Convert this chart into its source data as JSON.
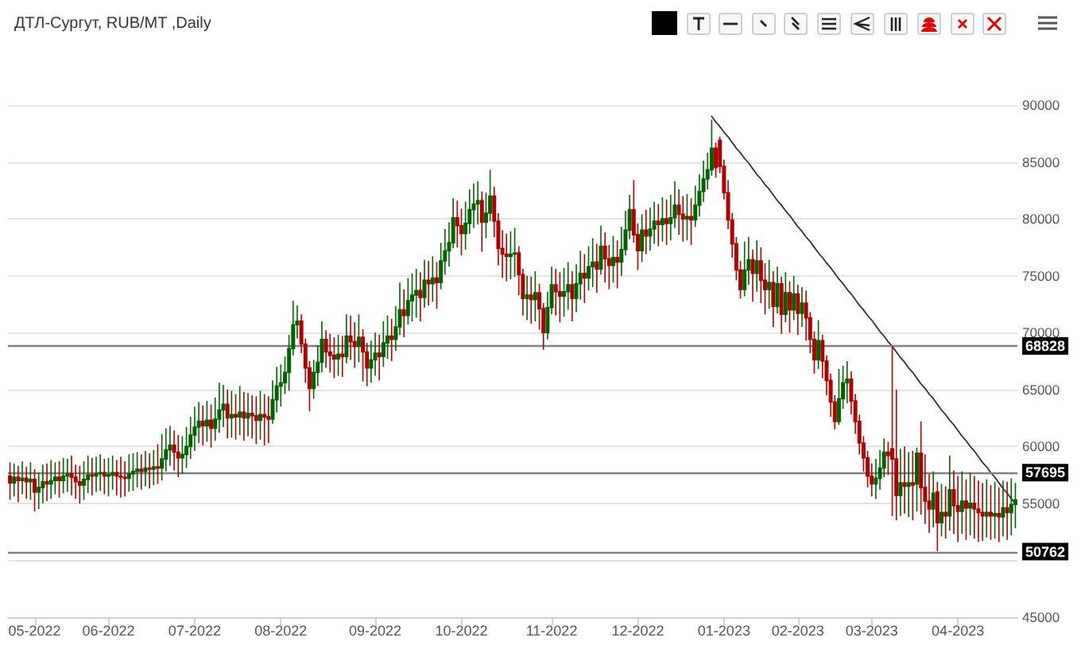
{
  "chart_data": {
    "type": "candlestick",
    "title": "ДТЛ-Сургут, RUB/MT ,Daily",
    "categories": [
      null,
      null,
      null,
      null,
      null,
      null,
      "05-2022",
      null,
      null,
      null,
      null,
      null,
      null,
      null,
      null,
      null,
      null,
      null,
      null,
      null,
      null,
      null,
      null,
      null,
      "06-2022",
      null,
      null,
      null,
      null,
      null,
      null,
      null,
      null,
      null,
      null,
      null,
      null,
      null,
      null,
      null,
      null,
      null,
      null,
      null,
      null,
      "07-2022",
      null,
      null,
      null,
      null,
      null,
      null,
      null,
      null,
      null,
      null,
      null,
      null,
      null,
      null,
      null,
      null,
      null,
      null,
      null,
      null,
      "08-2022",
      null,
      null,
      null,
      null,
      null,
      null,
      null,
      null,
      null,
      null,
      null,
      null,
      null,
      null,
      null,
      null,
      null,
      null,
      null,
      null,
      null,
      null,
      "09-2022",
      null,
      null,
      null,
      null,
      null,
      null,
      null,
      null,
      null,
      null,
      null,
      null,
      null,
      null,
      null,
      null,
      null,
      null,
      null,
      null,
      "10-2022",
      null,
      null,
      null,
      null,
      null,
      null,
      null,
      null,
      null,
      null,
      null,
      null,
      null,
      null,
      null,
      null,
      null,
      null,
      null,
      null,
      null,
      "11-2022",
      null,
      null,
      null,
      null,
      null,
      null,
      null,
      null,
      null,
      null,
      null,
      null,
      null,
      null,
      null,
      null,
      null,
      null,
      null,
      null,
      "12-2022",
      null,
      null,
      null,
      null,
      null,
      null,
      null,
      null,
      null,
      null,
      null,
      null,
      null,
      null,
      null,
      null,
      null,
      null,
      null,
      null,
      "01-2023",
      null,
      null,
      null,
      null,
      null,
      null,
      null,
      null,
      null,
      null,
      null,
      null,
      null,
      null,
      null,
      null,
      null,
      "02-2023",
      null,
      null,
      null,
      null,
      null,
      null,
      null,
      null,
      null,
      null,
      null,
      null,
      null,
      null,
      null,
      null,
      null,
      "03-2023",
      null,
      null,
      null,
      null,
      null,
      null,
      null,
      null,
      null,
      null,
      null,
      null,
      null,
      null,
      null,
      null,
      null,
      null,
      null,
      null,
      "04-2023",
      null,
      null,
      null,
      null,
      null,
      null,
      null,
      null,
      null,
      null,
      null,
      null,
      null,
      null
    ],
    "series": [
      {
        "ohlc": [
          [
            57400,
            58600,
            55300,
            56800
          ],
          [
            56800,
            58500,
            55600,
            57300
          ],
          [
            57300,
            58300,
            55100,
            57000
          ],
          [
            57000,
            58700,
            55800,
            57200
          ],
          [
            57200,
            58200,
            55400,
            56900
          ],
          [
            56900,
            58600,
            55300,
            57100
          ],
          [
            57100,
            58000,
            54300,
            56000
          ],
          [
            56000,
            57700,
            54500,
            56400
          ],
          [
            56400,
            58400,
            55000,
            56900
          ],
          [
            56900,
            58500,
            55200,
            56700
          ],
          [
            56700,
            58800,
            55400,
            57000
          ],
          [
            57000,
            58600,
            55800,
            57300
          ],
          [
            57300,
            58700,
            55500,
            57000
          ],
          [
            57000,
            59000,
            55900,
            57400
          ],
          [
            57400,
            58900,
            56000,
            57600
          ],
          [
            57600,
            59200,
            55700,
            57300
          ],
          [
            57300,
            58400,
            55400,
            56900
          ],
          [
            56900,
            58300,
            55000,
            56600
          ],
          [
            56600,
            58700,
            55300,
            57100
          ],
          [
            57100,
            59200,
            55900,
            57500
          ],
          [
            57500,
            59000,
            55700,
            57400
          ],
          [
            57400,
            59100,
            56000,
            57600
          ],
          [
            57600,
            59300,
            56100,
            57700
          ],
          [
            57700,
            58900,
            55800,
            57400
          ],
          [
            57400,
            59000,
            55600,
            57500
          ],
          [
            57500,
            59200,
            56200,
            57700
          ],
          [
            57700,
            58800,
            55700,
            57400
          ],
          [
            57400,
            59100,
            55500,
            57300
          ],
          [
            57300,
            58700,
            55600,
            57200
          ],
          [
            57200,
            59300,
            56000,
            57600
          ],
          [
            57600,
            59400,
            56100,
            57800
          ],
          [
            57800,
            59500,
            56400,
            58000
          ],
          [
            58000,
            59300,
            56200,
            57800
          ],
          [
            57800,
            59600,
            56500,
            58100
          ],
          [
            58100,
            59400,
            56300,
            58000
          ],
          [
            58000,
            59700,
            56600,
            58200
          ],
          [
            58200,
            60200,
            56700,
            58100
          ],
          [
            58100,
            61100,
            57000,
            58900
          ],
          [
            58900,
            61600,
            57800,
            59700
          ],
          [
            59700,
            61800,
            58300,
            60100
          ],
          [
            60100,
            61400,
            57900,
            59500
          ],
          [
            59500,
            61000,
            57300,
            59000
          ],
          [
            59000,
            60900,
            57600,
            59300
          ],
          [
            59300,
            61700,
            58100,
            60000
          ],
          [
            60000,
            62600,
            58900,
            61000
          ],
          [
            61000,
            63500,
            59600,
            61700
          ],
          [
            61700,
            63900,
            60300,
            62200
          ],
          [
            62200,
            63600,
            60100,
            61800
          ],
          [
            61800,
            64000,
            60400,
            62300
          ],
          [
            62300,
            63700,
            59900,
            61600
          ],
          [
            61600,
            64300,
            60500,
            62400
          ],
          [
            62400,
            65600,
            61200,
            63200
          ],
          [
            63200,
            65400,
            61700,
            63700
          ],
          [
            63700,
            65000,
            60700,
            62500
          ],
          [
            62500,
            64900,
            60800,
            62800
          ],
          [
            62800,
            64600,
            60600,
            62600
          ],
          [
            62600,
            65300,
            61000,
            63000
          ],
          [
            63000,
            64800,
            60500,
            62500
          ],
          [
            62500,
            64700,
            60900,
            62900
          ],
          [
            62900,
            64500,
            60700,
            62700
          ],
          [
            62700,
            64400,
            60200,
            62300
          ],
          [
            62300,
            64900,
            60600,
            62800
          ],
          [
            62800,
            64600,
            60100,
            62600
          ],
          [
            62600,
            64400,
            60300,
            62400
          ],
          [
            62400,
            65800,
            62000,
            64100
          ],
          [
            64100,
            67000,
            63000,
            65300
          ],
          [
            65300,
            67200,
            63500,
            65600
          ],
          [
            65600,
            67900,
            64600,
            66500
          ],
          [
            66500,
            69800,
            64900,
            68600
          ],
          [
            68600,
            72800,
            68000,
            70700
          ],
          [
            70700,
            72400,
            69500,
            71000
          ],
          [
            71000,
            71600,
            68200,
            69000
          ],
          [
            69000,
            69500,
            65600,
            66900
          ],
          [
            66900,
            67500,
            63100,
            65100
          ],
          [
            65100,
            67600,
            64200,
            66500
          ],
          [
            66500,
            68900,
            65300,
            67400
          ],
          [
            67400,
            71000,
            66500,
            69400
          ],
          [
            69400,
            70200,
            66900,
            68300
          ],
          [
            68300,
            69900,
            66500,
            68000
          ],
          [
            68000,
            69600,
            66000,
            67700
          ],
          [
            67700,
            69800,
            66200,
            68100
          ],
          [
            68100,
            69700,
            66100,
            67900
          ],
          [
            67900,
            71600,
            67300,
            69700
          ],
          [
            69700,
            71500,
            67600,
            69200
          ],
          [
            69200,
            70900,
            66900,
            68800
          ],
          [
            68800,
            71600,
            67400,
            69600
          ],
          [
            69600,
            70300,
            65700,
            68300
          ],
          [
            68300,
            69100,
            65300,
            66900
          ],
          [
            66900,
            69300,
            65600,
            67600
          ],
          [
            67600,
            70000,
            66200,
            68200
          ],
          [
            68200,
            69800,
            65800,
            67900
          ],
          [
            67900,
            71000,
            67000,
            69100
          ],
          [
            69100,
            71500,
            67700,
            69700
          ],
          [
            69700,
            71200,
            67500,
            69400
          ],
          [
            69400,
            72300,
            68400,
            70500
          ],
          [
            70500,
            74400,
            69800,
            72000
          ],
          [
            72000,
            73800,
            69600,
            71500
          ],
          [
            71500,
            74800,
            70700,
            72800
          ],
          [
            72800,
            75200,
            71000,
            73300
          ],
          [
            73300,
            75600,
            71300,
            73700
          ],
          [
            73700,
            75300,
            71000,
            73100
          ],
          [
            73100,
            76400,
            72200,
            74600
          ],
          [
            74600,
            76300,
            72400,
            74300
          ],
          [
            74300,
            76700,
            72700,
            74800
          ],
          [
            74800,
            76200,
            72100,
            74400
          ],
          [
            74400,
            77900,
            73800,
            76300
          ],
          [
            76300,
            79100,
            75100,
            77200
          ],
          [
            77200,
            79700,
            75800,
            77900
          ],
          [
            77900,
            81800,
            77400,
            80100
          ],
          [
            80100,
            81600,
            77500,
            79400
          ],
          [
            79400,
            80900,
            76800,
            78700
          ],
          [
            78700,
            81500,
            77300,
            79600
          ],
          [
            79600,
            82600,
            78700,
            80800
          ],
          [
            80800,
            83100,
            79200,
            81300
          ],
          [
            81300,
            83300,
            79500,
            81600
          ],
          [
            81600,
            82400,
            77100,
            79700
          ],
          [
            79700,
            82300,
            78300,
            80500
          ],
          [
            80500,
            84300,
            79800,
            82000
          ],
          [
            82000,
            82800,
            78400,
            79800
          ],
          [
            79800,
            80500,
            75900,
            77400
          ],
          [
            77400,
            79000,
            74800,
            76900
          ],
          [
            76900,
            78700,
            74500,
            76700
          ],
          [
            76700,
            78900,
            74700,
            76900
          ],
          [
            76900,
            79200,
            74900,
            77000
          ],
          [
            77000,
            77600,
            73300,
            75100
          ],
          [
            75100,
            75600,
            71500,
            73000
          ],
          [
            73000,
            75000,
            71100,
            73300
          ],
          [
            73300,
            74900,
            70800,
            72900
          ],
          [
            72900,
            75400,
            71000,
            73500
          ],
          [
            73500,
            74300,
            70300,
            72100
          ],
          [
            72100,
            72600,
            68500,
            70000
          ],
          [
            70000,
            73600,
            69400,
            72200
          ],
          [
            72200,
            75800,
            71600,
            74200
          ],
          [
            74200,
            75600,
            71500,
            73600
          ],
          [
            73600,
            75300,
            70900,
            73200
          ],
          [
            73200,
            75700,
            71400,
            73600
          ],
          [
            73600,
            76200,
            72000,
            74200
          ],
          [
            74200,
            75400,
            71000,
            73000
          ],
          [
            73000,
            76000,
            71800,
            74300
          ],
          [
            74300,
            77200,
            72900,
            75200
          ],
          [
            75200,
            76900,
            72600,
            74800
          ],
          [
            74800,
            77600,
            73700,
            75800
          ],
          [
            75800,
            78300,
            74000,
            76200
          ],
          [
            76200,
            77800,
            73500,
            75600
          ],
          [
            75600,
            79400,
            75100,
            77600
          ],
          [
            77600,
            78800,
            74400,
            76500
          ],
          [
            76500,
            77700,
            73800,
            75900
          ],
          [
            75900,
            78500,
            74400,
            76600
          ],
          [
            76600,
            78100,
            73900,
            76200
          ],
          [
            76200,
            79300,
            75000,
            77300
          ],
          [
            77300,
            80700,
            76800,
            79000
          ],
          [
            79000,
            82100,
            78200,
            80800
          ],
          [
            80800,
            83400,
            77900,
            78600
          ],
          [
            78600,
            79600,
            75500,
            77200
          ],
          [
            77200,
            80400,
            76200,
            79000
          ],
          [
            79000,
            80800,
            76900,
            78500
          ],
          [
            78500,
            81000,
            77200,
            79100
          ],
          [
            79100,
            81500,
            77800,
            79800
          ],
          [
            79800,
            81300,
            77600,
            79500
          ],
          [
            79500,
            81900,
            78000,
            80000
          ],
          [
            80000,
            81700,
            77700,
            79600
          ],
          [
            79600,
            82100,
            78100,
            80100
          ],
          [
            80100,
            83300,
            79200,
            81200
          ],
          [
            81200,
            82600,
            78600,
            80400
          ],
          [
            80400,
            82000,
            78000,
            80000
          ],
          [
            80000,
            82200,
            78100,
            80200
          ],
          [
            80200,
            81800,
            77700,
            79900
          ],
          [
            79900,
            82900,
            79300,
            81200
          ],
          [
            81200,
            83900,
            80200,
            82400
          ],
          [
            82400,
            85100,
            81500,
            83500
          ],
          [
            83500,
            85800,
            82600,
            84300
          ],
          [
            84300,
            88700,
            83800,
            86200
          ],
          [
            86200,
            86700,
            83600,
            84500
          ],
          [
            86900,
            87200,
            84000,
            84600
          ],
          [
            84600,
            85200,
            81700,
            82300
          ],
          [
            82300,
            83400,
            79100,
            79900
          ],
          [
            79900,
            80500,
            76600,
            77800
          ],
          [
            77800,
            78400,
            74600,
            75500
          ],
          [
            75500,
            76300,
            73000,
            73800
          ],
          [
            73800,
            78000,
            73200,
            75500
          ],
          [
            75500,
            78400,
            74200,
            76400
          ],
          [
            76400,
            77300,
            72700,
            75200
          ],
          [
            75200,
            78100,
            73600,
            76300
          ],
          [
            76300,
            77500,
            72600,
            74600
          ],
          [
            74600,
            76100,
            71600,
            73800
          ],
          [
            73800,
            76400,
            72100,
            74400
          ],
          [
            74400,
            75400,
            70500,
            72300
          ],
          [
            72300,
            75800,
            71700,
            74300
          ],
          [
            74300,
            74900,
            69900,
            71600
          ],
          [
            71600,
            75300,
            70900,
            73500
          ],
          [
            73500,
            74500,
            70000,
            72000
          ],
          [
            72000,
            75000,
            71100,
            73400
          ],
          [
            73400,
            74200,
            69800,
            71700
          ],
          [
            71700,
            74000,
            70500,
            72600
          ],
          [
            72600,
            73700,
            69300,
            71300
          ],
          [
            71300,
            71800,
            68200,
            69400
          ],
          [
            69400,
            70100,
            66400,
            67600
          ],
          [
            67600,
            71100,
            66800,
            69300
          ],
          [
            69300,
            69800,
            66000,
            67500
          ],
          [
            67500,
            68000,
            64500,
            65800
          ],
          [
            65800,
            66400,
            62600,
            63900
          ],
          [
            63900,
            64500,
            61500,
            62200
          ],
          [
            62200,
            66800,
            61900,
            64200
          ],
          [
            64200,
            67100,
            63300,
            65600
          ],
          [
            65600,
            67500,
            63800,
            65900
          ],
          [
            65900,
            66600,
            62800,
            64000
          ],
          [
            64000,
            64600,
            61100,
            62200
          ],
          [
            62200,
            62800,
            59300,
            60300
          ],
          [
            60300,
            60900,
            57800,
            59000
          ],
          [
            59000,
            59600,
            56400,
            57400
          ],
          [
            57400,
            58500,
            55600,
            56700
          ],
          [
            56700,
            58900,
            55400,
            57200
          ],
          [
            57200,
            59700,
            56200,
            58100
          ],
          [
            58100,
            60700,
            57300,
            59500
          ],
          [
            59500,
            60400,
            57500,
            59200
          ],
          [
            59800,
            68800,
            53900,
            58900
          ],
          [
            58900,
            65000,
            53500,
            55700
          ],
          [
            55700,
            59800,
            53900,
            56800
          ],
          [
            56800,
            60000,
            54100,
            56500
          ],
          [
            56500,
            59500,
            53800,
            56800
          ],
          [
            56800,
            59600,
            53500,
            56600
          ],
          [
            56700,
            59900,
            54300,
            59400
          ],
          [
            59400,
            62200,
            54000,
            56400
          ],
          [
            56400,
            59300,
            53200,
            55200
          ],
          [
            55200,
            57600,
            52400,
            54500
          ],
          [
            54500,
            57800,
            52900,
            55900
          ],
          [
            56000,
            56900,
            50800,
            53300
          ],
          [
            53300,
            56700,
            52100,
            54200
          ],
          [
            54200,
            56500,
            51900,
            53900
          ],
          [
            53900,
            59200,
            52600,
            56200
          ],
          [
            56200,
            57900,
            52300,
            54800
          ],
          [
            54800,
            57400,
            51600,
            54300
          ],
          [
            54300,
            57800,
            52300,
            55200
          ],
          [
            55200,
            57100,
            51800,
            54600
          ],
          [
            54600,
            57700,
            52200,
            55000
          ],
          [
            55000,
            57400,
            51900,
            54500
          ],
          [
            54500,
            57000,
            51600,
            54200
          ],
          [
            54200,
            56800,
            51700,
            53900
          ],
          [
            53900,
            57100,
            52000,
            54200
          ],
          [
            54200,
            56600,
            51800,
            53900
          ],
          [
            53900,
            56900,
            51900,
            54100
          ],
          [
            54100,
            56400,
            51600,
            53800
          ],
          [
            53800,
            57000,
            52100,
            54600
          ],
          [
            54600,
            56900,
            51800,
            54200
          ],
          [
            54200,
            57200,
            52200,
            54900
          ],
          [
            54900,
            56800,
            52800,
            55300
          ]
        ],
        "colors": [
          "#b00000",
          "#006400",
          "#b00000",
          "#006400",
          "#b00000",
          "#006400",
          "#b00000",
          "#006400",
          "#006400",
          "#b00000",
          "#006400",
          "#006400",
          "#b00000",
          "#006400",
          "#006400",
          "#b00000",
          "#b00000",
          "#b00000",
          "#006400",
          "#006400",
          "#b00000",
          "#006400",
          "#006400",
          "#b00000",
          "#006400",
          "#006400",
          "#b00000",
          "#b00000",
          "#b00000",
          "#006400",
          "#006400",
          "#006400",
          "#b00000",
          "#006400",
          "#b00000",
          "#006400",
          "#b00000",
          "#006400",
          "#006400",
          "#006400",
          "#b00000",
          "#b00000",
          "#006400",
          "#006400",
          "#006400",
          "#006400",
          "#006400",
          "#b00000",
          "#006400",
          "#b00000",
          "#006400",
          "#006400",
          "#006400",
          "#b00000",
          "#006400",
          "#b00000",
          "#006400",
          "#b00000",
          "#006400",
          "#b00000",
          "#b00000",
          "#006400",
          "#b00000",
          "#b00000",
          "#006400",
          "#006400",
          "#006400",
          "#006400",
          "#006400",
          "#006400",
          "#006400",
          "#b00000",
          "#b00000",
          "#b00000",
          "#006400",
          "#006400",
          "#006400",
          "#b00000",
          "#b00000",
          "#b00000",
          "#006400",
          "#b00000",
          "#006400",
          "#b00000",
          "#b00000",
          "#006400",
          "#b00000",
          "#b00000",
          "#006400",
          "#006400",
          "#b00000",
          "#006400",
          "#006400",
          "#b00000",
          "#006400",
          "#006400",
          "#b00000",
          "#006400",
          "#006400",
          "#006400",
          "#b00000",
          "#006400",
          "#b00000",
          "#006400",
          "#b00000",
          "#006400",
          "#006400",
          "#006400",
          "#006400",
          "#b00000",
          "#b00000",
          "#006400",
          "#006400",
          "#006400",
          "#006400",
          "#b00000",
          "#006400",
          "#006400",
          "#b00000",
          "#b00000",
          "#b00000",
          "#b00000",
          "#006400",
          "#006400",
          "#b00000",
          "#b00000",
          "#006400",
          "#b00000",
          "#006400",
          "#b00000",
          "#b00000",
          "#006400",
          "#006400",
          "#b00000",
          "#b00000",
          "#006400",
          "#006400",
          "#b00000",
          "#006400",
          "#006400",
          "#b00000",
          "#006400",
          "#006400",
          "#b00000",
          "#006400",
          "#b00000",
          "#b00000",
          "#006400",
          "#b00000",
          "#006400",
          "#006400",
          "#006400",
          "#b00000",
          "#b00000",
          "#006400",
          "#b00000",
          "#006400",
          "#006400",
          "#b00000",
          "#006400",
          "#b00000",
          "#006400",
          "#006400",
          "#b00000",
          "#b00000",
          "#006400",
          "#b00000",
          "#006400",
          "#006400",
          "#006400",
          "#006400",
          "#006400",
          "#b00000",
          "#b00000",
          "#b00000",
          "#b00000",
          "#b00000",
          "#b00000",
          "#b00000",
          "#006400",
          "#006400",
          "#b00000",
          "#006400",
          "#b00000",
          "#b00000",
          "#006400",
          "#b00000",
          "#006400",
          "#b00000",
          "#006400",
          "#b00000",
          "#006400",
          "#b00000",
          "#006400",
          "#b00000",
          "#b00000",
          "#b00000",
          "#006400",
          "#b00000",
          "#b00000",
          "#b00000",
          "#b00000",
          "#006400",
          "#006400",
          "#006400",
          "#b00000",
          "#b00000",
          "#b00000",
          "#b00000",
          "#b00000",
          "#b00000",
          "#006400",
          "#006400",
          "#006400",
          "#b00000",
          "#b00000",
          "#b00000",
          "#006400",
          "#b00000",
          "#006400",
          "#b00000",
          "#006400",
          "#b00000",
          "#b00000",
          "#b00000",
          "#006400",
          "#b00000",
          "#006400",
          "#b00000",
          "#006400",
          "#b00000",
          "#b00000",
          "#006400",
          "#b00000",
          "#006400",
          "#b00000",
          "#b00000",
          "#b00000",
          "#006400",
          "#b00000",
          "#006400",
          "#b00000",
          "#006400",
          "#b00000",
          "#006400",
          "#006400"
        ]
      },
      {
        "type": "line",
        "color": "#333333",
        "values": [
          null,
          null,
          null,
          null,
          null,
          null,
          null,
          null,
          null,
          null,
          null,
          null,
          null,
          null,
          null,
          null,
          null,
          null,
          null,
          null,
          null,
          null,
          null,
          null,
          null,
          null,
          null,
          null,
          null,
          null,
          null,
          null,
          null,
          null,
          null,
          null,
          null,
          null,
          null,
          null,
          null,
          null,
          null,
          null,
          null,
          null,
          null,
          null,
          null,
          null,
          null,
          null,
          null,
          null,
          null,
          null,
          null,
          null,
          null,
          null,
          null,
          null,
          null,
          null,
          null,
          null,
          null,
          null,
          null,
          null,
          null,
          null,
          null,
          null,
          null,
          null,
          null,
          null,
          null,
          null,
          null,
          null,
          null,
          null,
          null,
          null,
          null,
          null,
          null,
          null,
          null,
          null,
          null,
          null,
          null,
          null,
          null,
          null,
          null,
          null,
          null,
          null,
          null,
          null,
          null,
          null,
          null,
          null,
          null,
          null,
          null,
          null,
          null,
          null,
          null,
          null,
          null,
          null,
          null,
          null,
          null,
          null,
          null,
          null,
          null,
          null,
          null,
          null,
          null,
          null,
          null,
          null,
          null,
          null,
          null,
          null,
          null,
          null,
          null,
          null,
          null,
          null,
          null,
          null,
          null,
          null,
          null,
          null,
          null,
          null,
          null,
          null,
          null,
          null,
          null,
          null,
          null,
          null,
          null,
          null,
          null,
          null,
          null,
          null,
          null,
          null,
          null,
          null,
          null,
          null,
          null,
          89000,
          88500,
          88100,
          87600,
          87200,
          86700,
          86200,
          85800,
          85300,
          84900,
          84400,
          83900,
          83500,
          83000,
          82600,
          82100,
          81600,
          81200,
          80700,
          80300,
          79800,
          79300,
          78900,
          78400,
          78000,
          77500,
          77000,
          76600,
          76100,
          75700,
          75200,
          74700,
          74300,
          73800,
          73400,
          72900,
          72400,
          72000,
          71500,
          71100,
          70600,
          70100,
          69700,
          69200,
          68800,
          68300,
          67800,
          67400,
          66900,
          66500,
          66000,
          65500,
          65100,
          64600,
          64200,
          63700,
          63200,
          62800,
          62300,
          61900,
          61400,
          60900,
          60500,
          60000,
          59600,
          59100,
          58600,
          58200,
          57700,
          57300,
          56800,
          56300,
          55900,
          55400,
          55000
        ]
      }
    ],
    "ylim": [
      45000,
      90000
    ],
    "yticks": [
      45000,
      {
        "value": 50000,
        "label": null
      },
      55000,
      60000,
      65000,
      70000,
      75000,
      80000,
      85000,
      90000
    ],
    "ref_lines": [
      {
        "axis": "y",
        "value": 68828,
        "label": "68828",
        "color": "#808080"
      },
      {
        "axis": "y",
        "value": 57695,
        "label": "57695",
        "color": "#808080"
      },
      {
        "axis": "y",
        "value": 50762,
        "label": "50762",
        "color": "#808080"
      }
    ],
    "grid": "y",
    "marker": "none"
  }
}
